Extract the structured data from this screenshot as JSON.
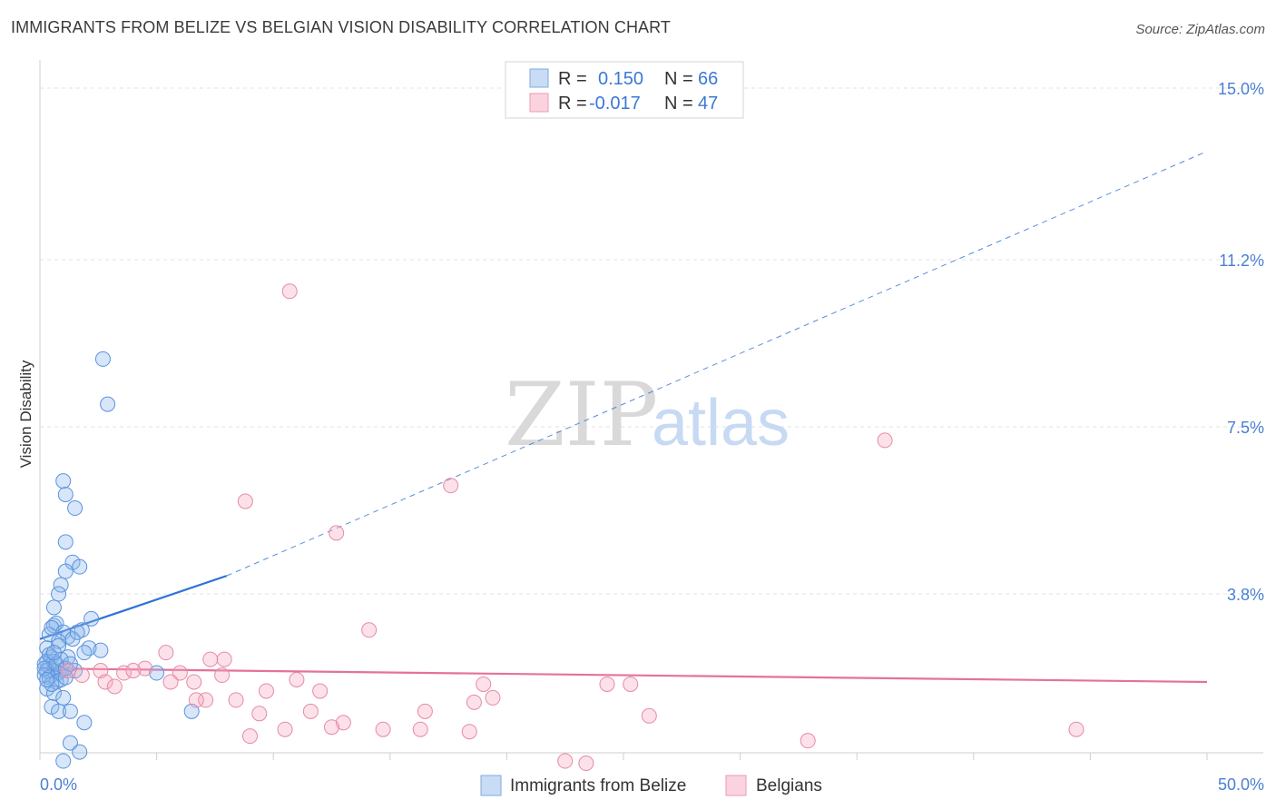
{
  "title": "IMMIGRANTS FROM BELIZE VS BELGIAN VISION DISABILITY CORRELATION CHART",
  "source": "Source: ZipAtlas.com",
  "watermark": {
    "zip": "ZIP",
    "atlas": "atlas"
  },
  "legend": {
    "rows": [
      {
        "r_label": "R =",
        "r_value": "0.150",
        "n_label": "N =",
        "n_value": "66",
        "color": "#a9c8f0"
      },
      {
        "r_label": "R =",
        "r_value": "-0.017",
        "n_label": "N =",
        "n_value": "47",
        "color": "#f7b9cb"
      }
    ]
  },
  "bottom_legend": [
    {
      "label": "Immigrants from Belize",
      "color": "#a9c8f0"
    },
    {
      "label": "Belgians",
      "color": "#f7b9cb"
    }
  ],
  "colors": {
    "blue_fill": "rgba(141,182,235,0.35)",
    "blue_stroke": "#5b93de",
    "blue_line": "#2f72d6",
    "pink_fill": "rgba(246,168,192,0.35)",
    "pink_stroke": "#e68aa8",
    "pink_line": "#e4729a",
    "grid": "#e3e3e3",
    "tick_label": "#4a7fd4"
  },
  "chart_data": {
    "type": "scatter",
    "title": "IMMIGRANTS FROM BELIZE VS BELGIAN VISION DISABILITY CORRELATION CHART",
    "xlabel": "",
    "ylabel": "Vision Disability",
    "xlim": [
      0,
      50
    ],
    "ylim": [
      0,
      15.6
    ],
    "x_tick_labels": [
      {
        "value": 0,
        "label": "0.0%"
      },
      {
        "value": 50,
        "label": "50.0%"
      }
    ],
    "y_ticks": [
      {
        "value": 3.8,
        "label": "3.8%"
      },
      {
        "value": 7.5,
        "label": "7.5%"
      },
      {
        "value": 11.2,
        "label": "11.2%"
      },
      {
        "value": 15.0,
        "label": "15.0%"
      }
    ],
    "grid": true,
    "legend_position": "top-center",
    "series": [
      {
        "name": "Immigrants from Belize",
        "color": "#a9c8f0",
        "points": [
          [
            2.7,
            9.0
          ],
          [
            2.9,
            8.0
          ],
          [
            1.0,
            6.3
          ],
          [
            1.1,
            6.0
          ],
          [
            1.5,
            5.7
          ],
          [
            1.1,
            4.95
          ],
          [
            1.4,
            4.5
          ],
          [
            1.7,
            4.4
          ],
          [
            1.1,
            4.3
          ],
          [
            0.9,
            4.0
          ],
          [
            0.8,
            3.8
          ],
          [
            0.6,
            3.5
          ],
          [
            2.2,
            3.25
          ],
          [
            1.8,
            3.0
          ],
          [
            0.6,
            3.1
          ],
          [
            0.7,
            3.15
          ],
          [
            0.4,
            2.9
          ],
          [
            0.5,
            3.05
          ],
          [
            1.0,
            2.95
          ],
          [
            1.2,
            2.85
          ],
          [
            0.8,
            2.75
          ],
          [
            1.4,
            2.8
          ],
          [
            1.6,
            2.95
          ],
          [
            2.1,
            2.6
          ],
          [
            2.6,
            2.55
          ],
          [
            1.9,
            2.5
          ],
          [
            0.3,
            2.6
          ],
          [
            0.5,
            2.4
          ],
          [
            1.2,
            2.4
          ],
          [
            0.3,
            2.3
          ],
          [
            0.4,
            2.2
          ],
          [
            0.2,
            2.25
          ],
          [
            0.6,
            2.1
          ],
          [
            0.5,
            2.0
          ],
          [
            0.3,
            2.1
          ],
          [
            0.8,
            2.05
          ],
          [
            0.9,
            2.1
          ],
          [
            1.5,
            2.1
          ],
          [
            0.2,
            2.0
          ],
          [
            0.4,
            1.95
          ],
          [
            0.7,
            1.85
          ],
          [
            0.9,
            1.9
          ],
          [
            1.1,
            1.95
          ],
          [
            0.3,
            1.7
          ],
          [
            0.6,
            1.6
          ],
          [
            1.0,
            1.5
          ],
          [
            0.5,
            1.3
          ],
          [
            0.8,
            1.2
          ],
          [
            1.3,
            1.2
          ],
          [
            1.9,
            0.95
          ],
          [
            1.3,
            0.5
          ],
          [
            1.7,
            0.3
          ],
          [
            1.0,
            0.1
          ],
          [
            0.6,
            2.3
          ],
          [
            0.2,
            2.15
          ],
          [
            0.4,
            2.45
          ],
          [
            0.7,
            2.25
          ],
          [
            0.9,
            2.35
          ],
          [
            1.1,
            2.15
          ],
          [
            1.3,
            2.25
          ],
          [
            0.5,
            1.8
          ],
          [
            0.3,
            1.9
          ],
          [
            5.0,
            2.05
          ],
          [
            6.5,
            1.2
          ],
          [
            0.8,
            2.65
          ],
          [
            0.6,
            2.5
          ]
        ]
      },
      {
        "name": "Belgians",
        "color": "#f7b9cb",
        "points": [
          [
            10.7,
            10.5
          ],
          [
            36.2,
            7.2
          ],
          [
            17.6,
            6.2
          ],
          [
            8.8,
            5.85
          ],
          [
            12.7,
            5.15
          ],
          [
            14.1,
            3.0
          ],
          [
            5.4,
            2.5
          ],
          [
            7.3,
            2.35
          ],
          [
            7.9,
            2.35
          ],
          [
            4.5,
            2.15
          ],
          [
            2.6,
            2.1
          ],
          [
            3.6,
            2.05
          ],
          [
            4.0,
            2.1
          ],
          [
            6.0,
            2.05
          ],
          [
            7.8,
            2.0
          ],
          [
            1.8,
            2.0
          ],
          [
            2.8,
            1.85
          ],
          [
            3.2,
            1.75
          ],
          [
            5.6,
            1.85
          ],
          [
            11.0,
            1.9
          ],
          [
            6.6,
            1.85
          ],
          [
            9.7,
            1.65
          ],
          [
            12.0,
            1.65
          ],
          [
            19.0,
            1.8
          ],
          [
            24.3,
            1.8
          ],
          [
            25.3,
            1.8
          ],
          [
            19.4,
            1.5
          ],
          [
            18.6,
            1.4
          ],
          [
            7.1,
            1.45
          ],
          [
            6.7,
            1.45
          ],
          [
            8.4,
            1.45
          ],
          [
            11.6,
            1.2
          ],
          [
            9.4,
            1.15
          ],
          [
            16.5,
            1.2
          ],
          [
            13.0,
            0.95
          ],
          [
            12.5,
            0.85
          ],
          [
            14.7,
            0.8
          ],
          [
            10.5,
            0.8
          ],
          [
            16.3,
            0.8
          ],
          [
            18.4,
            0.75
          ],
          [
            26.1,
            1.1
          ],
          [
            44.4,
            0.8
          ],
          [
            32.9,
            0.55
          ],
          [
            9.0,
            0.65
          ],
          [
            22.5,
            0.1
          ],
          [
            23.4,
            0.05
          ],
          [
            1.2,
            2.1
          ]
        ]
      }
    ],
    "trend_lines": [
      {
        "series": "Immigrants from Belize",
        "x_start": 0,
        "y_start": 2.8,
        "x_solid_end": 8.0,
        "y_solid_end": 4.2,
        "x_end": 50,
        "y_end": 13.6,
        "dashed_after_solid": true
      },
      {
        "series": "Belgians",
        "x_start": 0,
        "y_start": 2.15,
        "x_end": 50,
        "y_end": 1.85
      }
    ]
  }
}
